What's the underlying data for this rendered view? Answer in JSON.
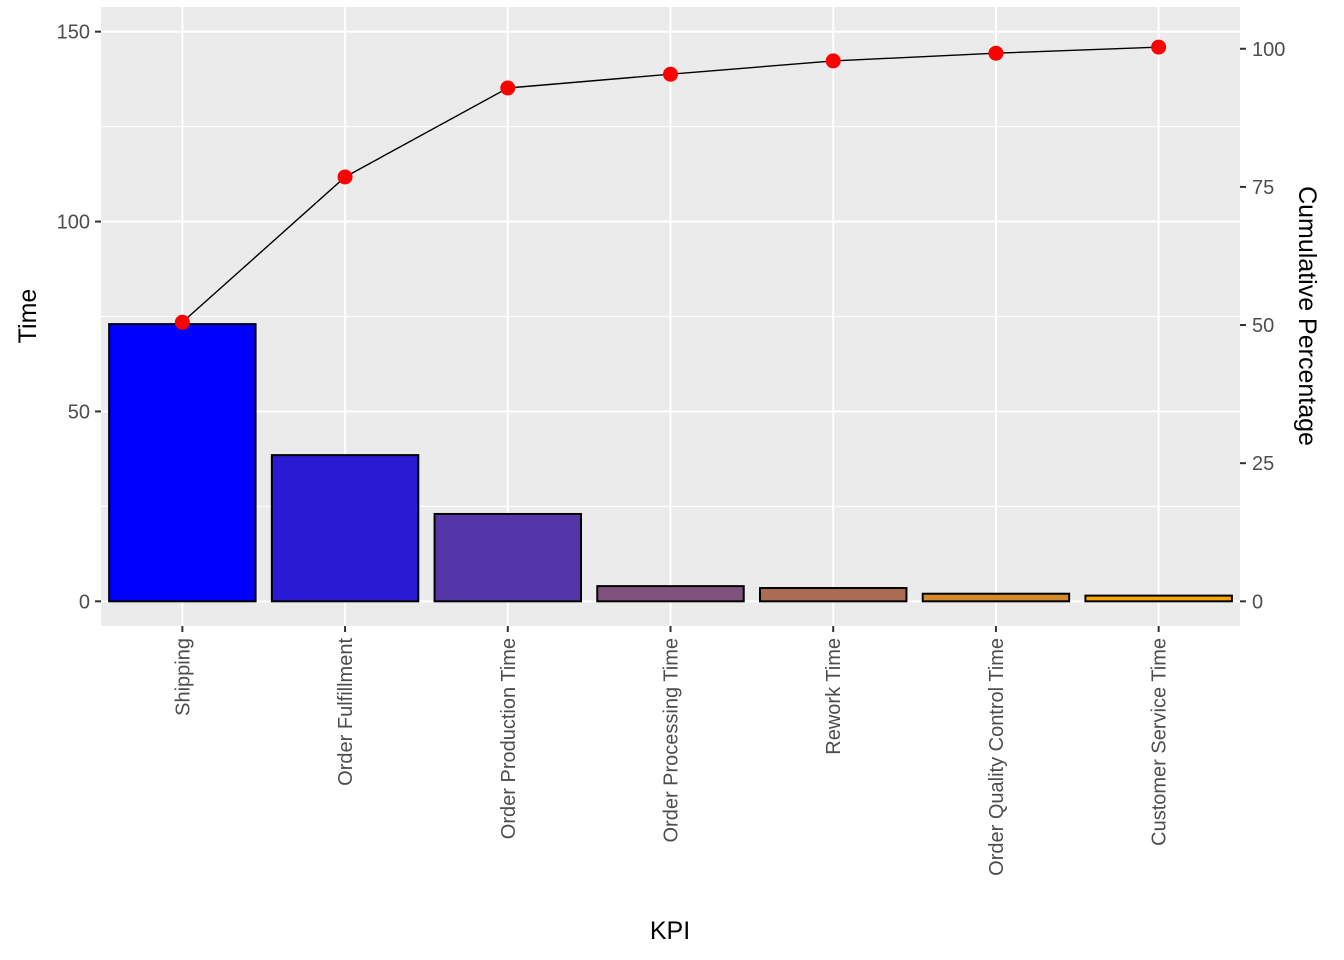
{
  "chart_data": {
    "type": "bar",
    "categories": [
      "Shipping",
      "Order Fulfillment",
      "Order Production Time",
      "Order Processing Time",
      "Rework Time",
      "Order Quality Control Time",
      "Customer Service Time"
    ],
    "series": [
      {
        "type": "bar",
        "values": [
          73,
          38.5,
          23,
          4,
          3.5,
          2,
          1.5
        ]
      },
      {
        "type": "line",
        "axis": "right",
        "values": [
          50.5,
          76.8,
          92.9,
          95.4,
          97.8,
          99.2,
          100.3
        ]
      }
    ],
    "bar_colors": [
      "#0000ff",
      "#2a1ad4",
      "#5536a8",
      "#7f527d",
      "#aa6d54",
      "#d4892a",
      "#ffa500"
    ],
    "bar_outline": "#000000",
    "line_color": "#000000",
    "point_color": "#ff0000",
    "xlabel": "KPI",
    "ylabel": "Time",
    "y2label": "Cumulative Percentage",
    "ylim": [
      -6.5,
      156.5
    ],
    "yticks": [
      0,
      50,
      100,
      150
    ],
    "y2ticks": [
      0,
      25,
      50,
      75,
      100
    ],
    "panel_background": "#ebebeb",
    "grid": true,
    "legend": "none"
  }
}
